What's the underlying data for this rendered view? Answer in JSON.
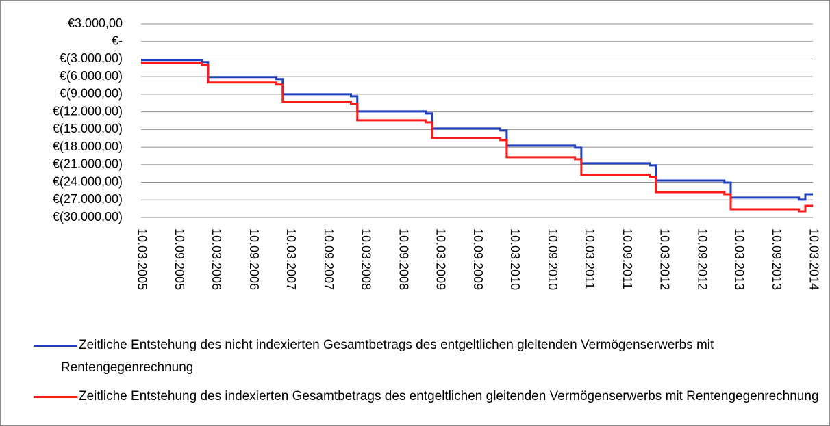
{
  "chart_data": {
    "type": "step-line",
    "x": [
      "10.03.2005",
      "01.01.2006",
      "01.02.2006",
      "01.01.2007",
      "01.02.2007",
      "01.01.2008",
      "01.02.2008",
      "01.01.2009",
      "01.02.2009",
      "01.01.2010",
      "01.02.2010",
      "01.01.2011",
      "01.02.2011",
      "01.01.2012",
      "01.02.2012",
      "01.01.2013",
      "01.02.2013",
      "01.01.2014",
      "01.02.2014",
      "10.03.2014"
    ],
    "series": [
      {
        "name": "Zeitliche Entstehung des nicht indexierten Gesamtbetrags des entgeltlichen gleitenden Vermögenserwerbs mit Rentengegenrechnung",
        "color": "#1f3fbf",
        "values": [
          -3150,
          -3500,
          -6070,
          -6420,
          -8990,
          -9340,
          -11910,
          -12260,
          -14820,
          -15180,
          -17740,
          -18090,
          -20780,
          -21130,
          -23700,
          -24050,
          -26610,
          -26960,
          -26030,
          -26030
        ]
      },
      {
        "name": "Zeitliche Entstehung des indexierten Gesamtbetrags des entgeltlichen gleitenden Vermögenserwerbs mit Rentengegenrechnung",
        "color": "#ff1a1a",
        "values": [
          -3620,
          -3970,
          -7000,
          -7350,
          -10270,
          -10620,
          -13420,
          -13770,
          -16460,
          -16810,
          -19730,
          -20080,
          -22760,
          -23110,
          -25680,
          -26030,
          -28600,
          -28950,
          -28020,
          -28020
        ]
      }
    ],
    "ylim": [
      -30000,
      3000
    ],
    "yticks": [
      {
        "value": 3000,
        "label": "€3.000,00"
      },
      {
        "value": 0,
        "label": "€-"
      },
      {
        "value": -3000,
        "label": "€(3.000,00)"
      },
      {
        "value": -6000,
        "label": "€(6.000,00)"
      },
      {
        "value": -9000,
        "label": "€(9.000,00)"
      },
      {
        "value": -12000,
        "label": "€(12.000,00)"
      },
      {
        "value": -15000,
        "label": "€(15.000,00)"
      },
      {
        "value": -18000,
        "label": "€(18.000,00)"
      },
      {
        "value": -21000,
        "label": "€(21.000,00)"
      },
      {
        "value": -24000,
        "label": "€(24.000,00)"
      },
      {
        "value": -27000,
        "label": "€(27.000,00)"
      },
      {
        "value": -30000,
        "label": "€(30.000,00)"
      }
    ],
    "xlim": [
      "10.03.2005",
      "10.03.2014"
    ],
    "xticks": [
      "10.03.2005",
      "10.09.2005",
      "10.03.2006",
      "10.09.2006",
      "10.03.2007",
      "10.09.2007",
      "10.03.2008",
      "10.09.2008",
      "10.03.2009",
      "10.09.2009",
      "10.03.2010",
      "10.09.2010",
      "10.03.2011",
      "10.09.2011",
      "10.03.2012",
      "10.09.2012",
      "10.03.2013",
      "10.09.2013",
      "10.03.2014"
    ],
    "grid": true,
    "legend": "bottom"
  }
}
